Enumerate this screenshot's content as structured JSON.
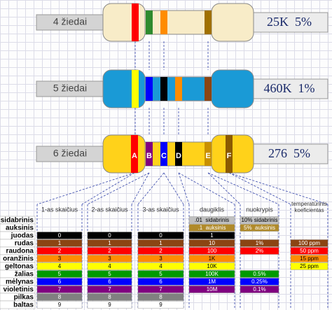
{
  "resistors": [
    {
      "label": "4 žiedai",
      "value": "25K  5%",
      "body": "#f8ecc8",
      "bands": [
        "#ff0000",
        "#2e8b2e",
        "#ff8c00",
        "#a07000"
      ]
    },
    {
      "label": "5 žiedai",
      "value": "460K  1%",
      "body": "#1a9ad6",
      "bands": [
        "#ffff00",
        "#0000ff",
        "#000000",
        "#ff8c00",
        "#8b4513"
      ]
    },
    {
      "label": "6 žiedai",
      "value": "276  5%",
      "body": "#ffd21a",
      "bands": [
        "#ff0000",
        "#800080",
        "#0000ff",
        "#000000",
        "#c89000",
        "#8b5a00"
      ]
    }
  ],
  "band_letters": [
    "A",
    "B",
    "C",
    "D",
    "E",
    "F"
  ],
  "table": {
    "columns": [
      "1-as skaičius",
      "2-as skaičius",
      "3-as skaičius",
      "daugiklis",
      "nuokrypis",
      [
        "temperatūrinis",
        "koeficientas"
      ]
    ],
    "rows": [
      {
        "name": "sidabrinis",
        "color": "#c0c0c0",
        "cells": [
          null,
          null,
          null,
          ".01  sidabrinis",
          "10% sidabrinis",
          null
        ]
      },
      {
        "name": "auksinis",
        "color": "#b08a2a",
        "cells": [
          null,
          null,
          null,
          ".1  auksinis",
          "5%  auksinis",
          null
        ]
      },
      {
        "name": "juodas",
        "color": "#000000",
        "cells": [
          "0",
          "0",
          "0",
          "1",
          null,
          null
        ]
      },
      {
        "name": "rudas",
        "color": "#8b4513",
        "cells": [
          "1",
          "1",
          "1",
          "10",
          "1%",
          "100 ppm"
        ]
      },
      {
        "name": "raudona",
        "color": "#ff0000",
        "cells": [
          "2",
          "2",
          "2",
          "100",
          "2%",
          "50 ppm"
        ]
      },
      {
        "name": "oranžinis",
        "color": "#ff8c00",
        "cells": [
          "3",
          "3",
          "3",
          "1K",
          null,
          "15 ppm"
        ]
      },
      {
        "name": "geltonas",
        "color": "#ffff00",
        "cells": [
          "4",
          "4",
          "4",
          "10K",
          null,
          "25 ppm"
        ]
      },
      {
        "name": "žalias",
        "color": "#009a00",
        "cells": [
          "5",
          "5",
          "5",
          "100K",
          "0.5%",
          null
        ]
      },
      {
        "name": "mėlynas",
        "color": "#0000ff",
        "cells": [
          "6",
          "6",
          "6",
          "1M",
          "0.25%",
          null
        ]
      },
      {
        "name": "violetinis",
        "color": "#800080",
        "cells": [
          "7",
          "7",
          "7",
          "10M",
          "0.1%",
          null
        ]
      },
      {
        "name": "pilkas",
        "color": "#808080",
        "cells": [
          "8",
          "8",
          "8",
          null,
          null,
          null
        ]
      },
      {
        "name": "baltas",
        "color": "#ffffff",
        "cells": [
          "9",
          "9",
          "9",
          null,
          null,
          null
        ]
      }
    ]
  }
}
